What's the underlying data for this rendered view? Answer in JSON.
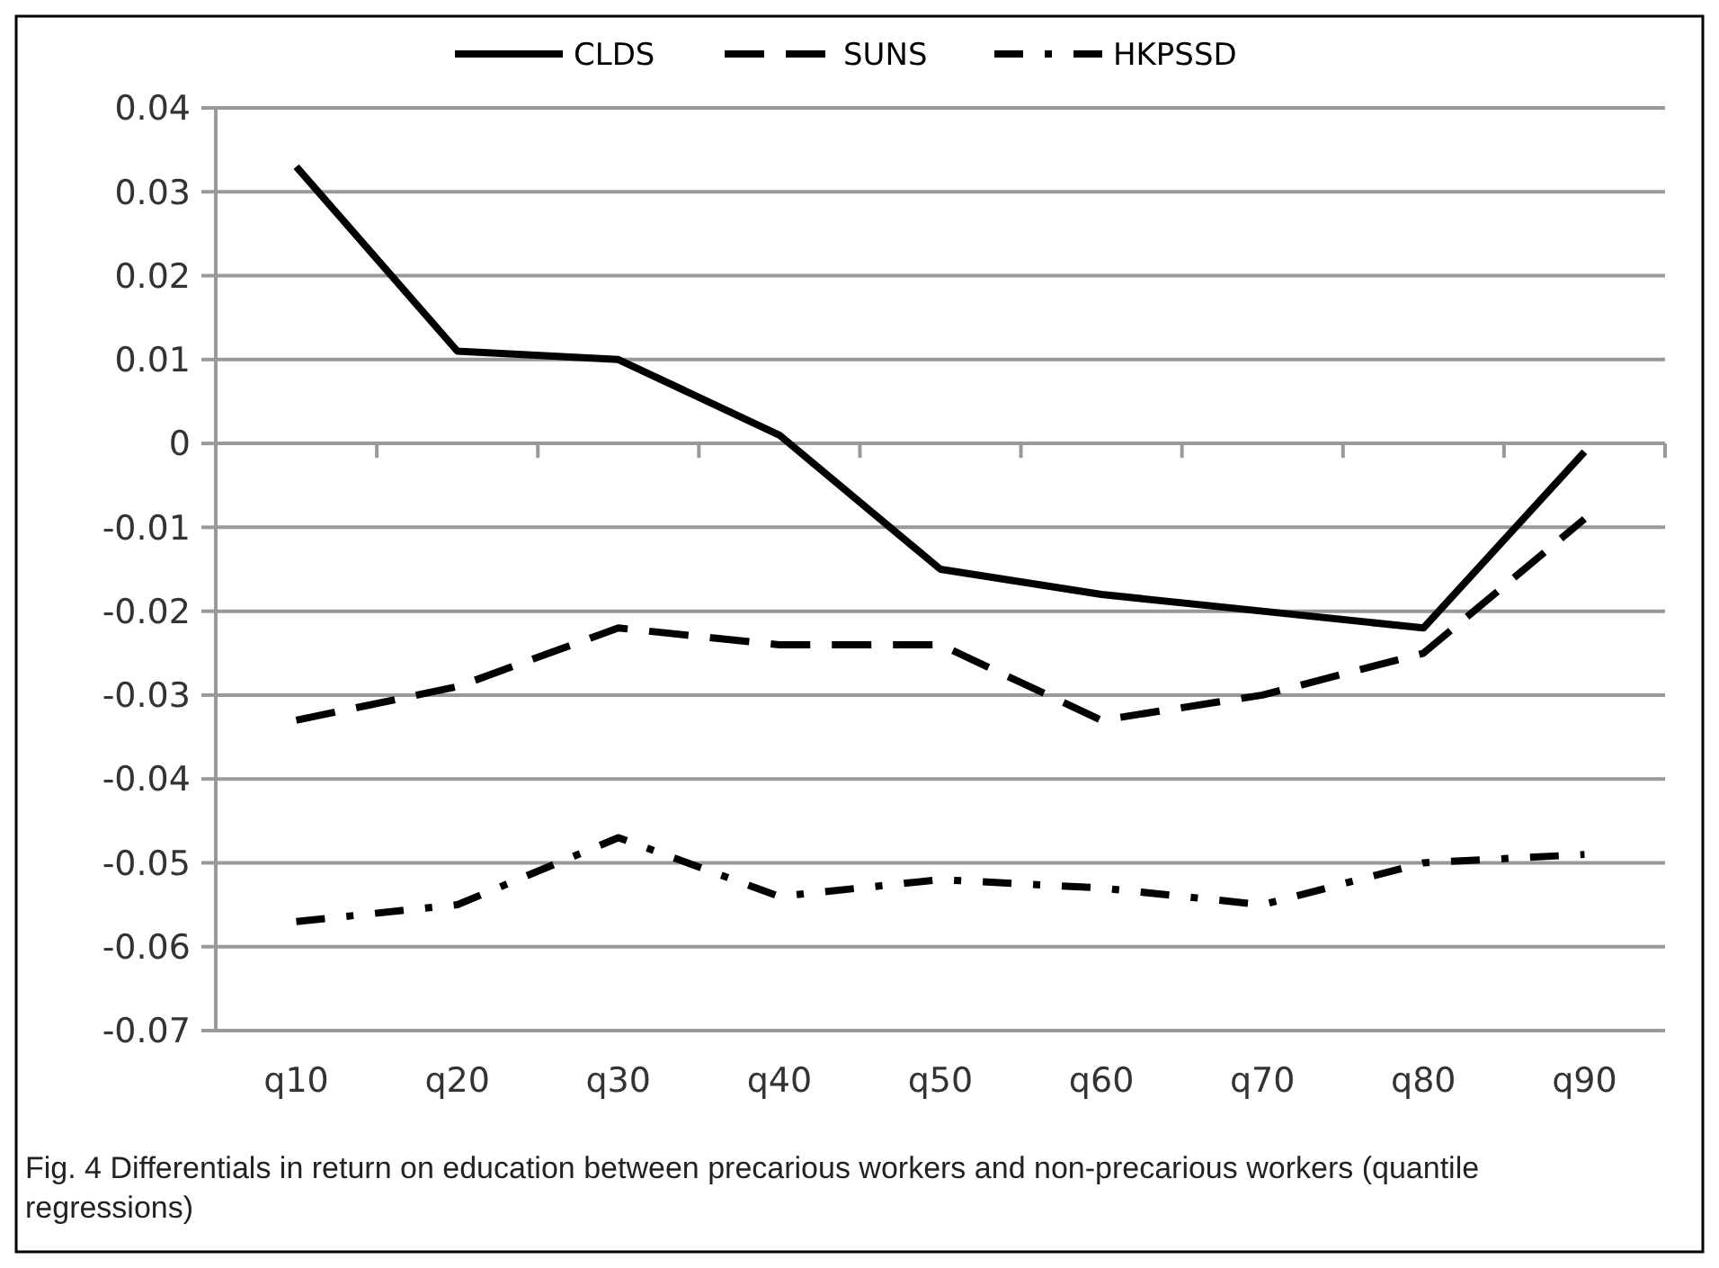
{
  "chart_data": {
    "type": "line",
    "categories": [
      "q10",
      "q20",
      "q30",
      "q40",
      "q50",
      "q60",
      "q70",
      "q80",
      "q90"
    ],
    "series": [
      {
        "name": "CLDS",
        "color": "#000000",
        "line_style": "solid",
        "values": [
          0.033,
          0.011,
          0.01,
          0.001,
          -0.015,
          -0.018,
          -0.02,
          -0.022,
          -0.001
        ]
      },
      {
        "name": "SUNS",
        "color": "#000000",
        "line_style": "dashed",
        "values": [
          -0.033,
          -0.029,
          -0.022,
          -0.024,
          -0.024,
          -0.033,
          -0.03,
          -0.025,
          -0.009
        ]
      },
      {
        "name": "HKPSSD",
        "color": "#000000",
        "line_style": "dashdot",
        "values": [
          -0.057,
          -0.055,
          -0.047,
          -0.054,
          -0.052,
          -0.053,
          -0.055,
          -0.05,
          -0.049
        ]
      }
    ],
    "ylim": [
      -0.07,
      0.04
    ],
    "yticks": [
      -0.07,
      -0.06,
      -0.05,
      -0.04,
      -0.03,
      -0.02,
      -0.01,
      0,
      0.01,
      0.02,
      0.03,
      0.04
    ],
    "grid": "y",
    "legend": "top",
    "marker": "none",
    "annotations": [
      "Fig. 4 Differentials in return on education between precarious workers and non-precarious workers (quantile regressions)"
    ]
  }
}
